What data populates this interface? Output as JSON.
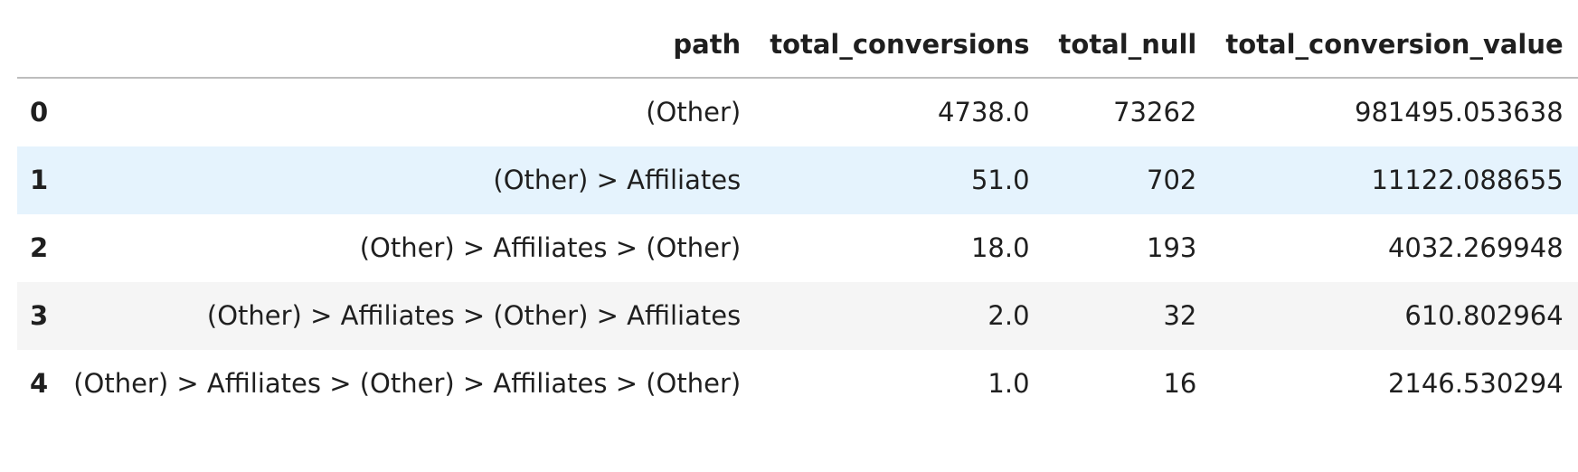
{
  "table": {
    "index_header": "",
    "columns": [
      "path",
      "total_conversions",
      "total_null",
      "total_conversion_value"
    ],
    "rows": [
      {
        "index": "0",
        "path": "(Other)",
        "total_conversions": "4738.0",
        "total_null": "73262",
        "total_conversion_value": "981495.053638"
      },
      {
        "index": "1",
        "path": "(Other) > Affiliates",
        "total_conversions": "51.0",
        "total_null": "702",
        "total_conversion_value": "11122.088655"
      },
      {
        "index": "2",
        "path": "(Other) > Affiliates > (Other)",
        "total_conversions": "18.0",
        "total_null": "193",
        "total_conversion_value": "4032.269948"
      },
      {
        "index": "3",
        "path": "(Other) > Affiliates > (Other) > Affiliates",
        "total_conversions": "2.0",
        "total_null": "32",
        "total_conversion_value": "610.802964"
      },
      {
        "index": "4",
        "path": "(Other) > Affiliates > (Other) > Affiliates > (Other)",
        "total_conversions": "1.0",
        "total_null": "16",
        "total_conversion_value": "2146.530294"
      }
    ]
  },
  "colors": {
    "hover_row": "#e5f3fd",
    "striped_row": "#f5f5f5",
    "header_border": "#bdbdbd"
  }
}
